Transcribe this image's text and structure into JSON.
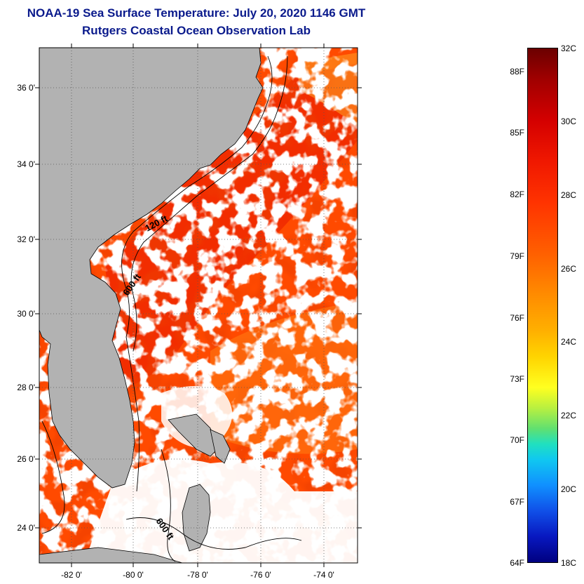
{
  "title_line1": "NOAA-19 Sea Surface Temperature:  July 20, 2020 1146 GMT",
  "title_line2": "Rutgers Coastal Ocean Observation Lab",
  "lat_labels": [
    "36 0'",
    "34 0'",
    "32 0'",
    "30 0'",
    "28 0'",
    "26 0'",
    "24 0'"
  ],
  "lon_labels": [
    "-82 0'",
    "-80 0'",
    "-78 0'",
    "-76 0'",
    "-74 0'"
  ],
  "isobath_labels": [
    "120 ft",
    "600 ft",
    "600 ft"
  ],
  "colorbar": {
    "fahrenheit": [
      "88F",
      "85F",
      "82F",
      "79F",
      "76F",
      "73F",
      "70F",
      "67F",
      "64F"
    ],
    "celsius": [
      "32C",
      "30C",
      "28C",
      "26C",
      "24C",
      "22C",
      "20C",
      "18C"
    ],
    "range_c": [
      18,
      32
    ]
  },
  "colors": {
    "title": "#0a1a8c",
    "land": "#b2b2b2",
    "ocean_warm": "#ff3a00",
    "cloud": "#ffffff"
  }
}
